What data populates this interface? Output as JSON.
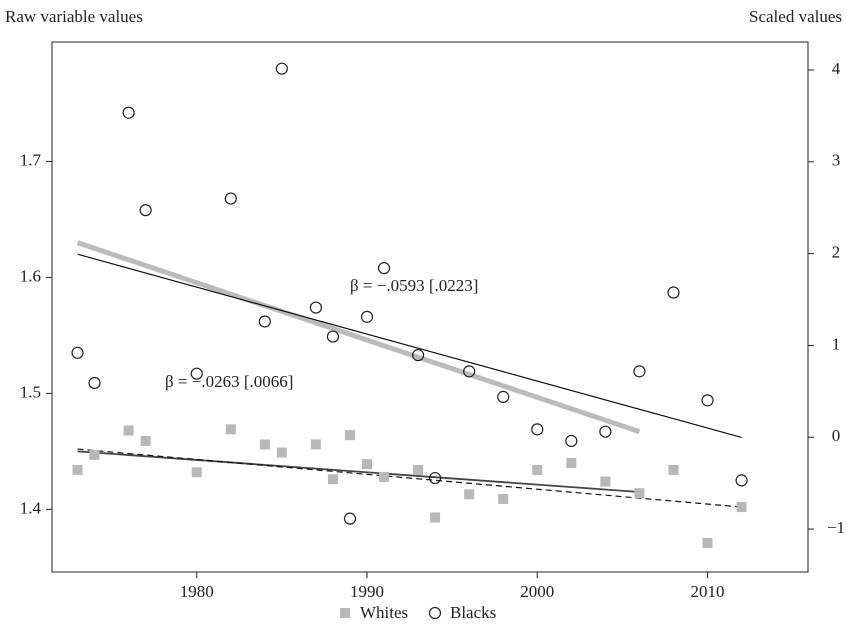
{
  "chart_data": {
    "type": "scatter",
    "ylabel": "Raw variable values",
    "y2label": "Scaled values",
    "xlim": [
      1971.5,
      2015.9
    ],
    "xticks": [
      1980,
      1990,
      2000,
      2010
    ],
    "ylim": [
      1.346,
      1.803
    ],
    "yticks": [
      1.4,
      1.5,
      1.6,
      1.7
    ],
    "y2lim": [
      -1.468,
      4.305
    ],
    "y2ticks": [
      {
        "value": -1,
        "label": "−1"
      },
      0,
      1,
      2,
      3,
      4
    ],
    "grid": false,
    "legend": "bottom",
    "series": [
      {
        "name": "Whites",
        "color": "#b8b8b8",
        "marker": "square",
        "x": [
          1973,
          1974,
          1976,
          1977,
          1980,
          1982,
          1984,
          1985,
          1987,
          1988,
          1989,
          1990,
          1991,
          1993,
          1994,
          1996,
          1998,
          2000,
          2002,
          2004,
          2006,
          2008,
          2010,
          2012
        ],
        "values": [
          1.434,
          1.447,
          1.468,
          1.459,
          1.432,
          1.469,
          1.456,
          1.449,
          1.456,
          1.426,
          1.464,
          1.439,
          1.428,
          1.434,
          1.393,
          1.413,
          1.409,
          1.434,
          1.44,
          1.424,
          1.414,
          1.434,
          1.371,
          1.402
        ]
      },
      {
        "name": "Blacks",
        "color": "#222222",
        "marker": "circle",
        "x": [
          1973,
          1974,
          1976,
          1977,
          1980,
          1982,
          1984,
          1985,
          1987,
          1988,
          1989,
          1990,
          1991,
          1993,
          1994,
          1996,
          1998,
          2000,
          2002,
          2004,
          2006,
          2008,
          2010,
          2012
        ],
        "values": [
          1.535,
          1.509,
          1.742,
          1.658,
          1.517,
          1.668,
          1.562,
          1.78,
          1.574,
          1.549,
          1.392,
          1.566,
          1.608,
          1.533,
          1.427,
          1.519,
          1.497,
          1.469,
          1.459,
          1.467,
          1.519,
          1.587,
          1.494,
          1.425
        ]
      }
    ],
    "trend_lines": [
      {
        "style": "thick",
        "color": "#bbbbbb",
        "x": [
          1973,
          2006
        ],
        "values": [
          1.63,
          1.467
        ]
      },
      {
        "style": "thin",
        "color": "#111111",
        "x": [
          1973,
          2012
        ],
        "values": [
          1.62,
          1.462
        ]
      },
      {
        "style": "medium",
        "color": "#444444",
        "x": [
          1973,
          2006
        ],
        "values": [
          1.45,
          1.415
        ]
      },
      {
        "style": "dashed",
        "color": "#111111",
        "x": [
          1973,
          2012
        ],
        "values": [
          1.452,
          1.402
        ]
      }
    ],
    "annotations": [
      "β = −.0593 [.0223]",
      "β = −.0263 [.0066]"
    ]
  }
}
